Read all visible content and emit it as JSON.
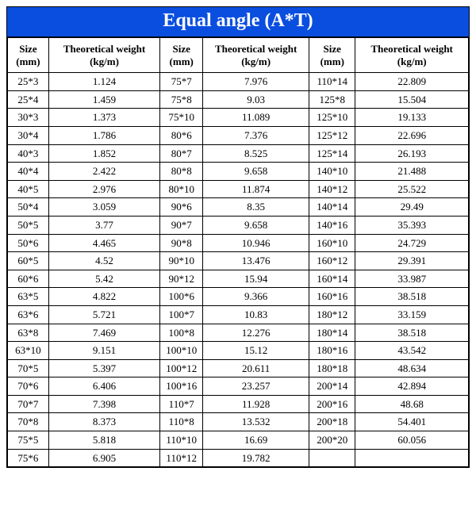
{
  "title": "Equal   angle (A*T)",
  "headers": {
    "size": "Size",
    "size_unit": "(mm)",
    "weight": "Theoretical weight",
    "weight_unit": "(kg/m)"
  },
  "colors": {
    "title_bg": "#0a4ee0",
    "title_fg": "#ffffff",
    "border": "#000000",
    "bg": "#ffffff"
  },
  "rows": [
    {
      "s1": "25*3",
      "w1": "1.124",
      "s2": "75*7",
      "w2": "7.976",
      "s3": "110*14",
      "w3": "22.809"
    },
    {
      "s1": "25*4",
      "w1": "1.459",
      "s2": "75*8",
      "w2": "9.03",
      "s3": "125*8",
      "w3": "15.504"
    },
    {
      "s1": "30*3",
      "w1": "1.373",
      "s2": "75*10",
      "w2": "11.089",
      "s3": "125*10",
      "w3": "19.133"
    },
    {
      "s1": "30*4",
      "w1": "1.786",
      "s2": "80*6",
      "w2": "7.376",
      "s3": "125*12",
      "w3": "22.696"
    },
    {
      "s1": "40*3",
      "w1": "1.852",
      "s2": "80*7",
      "w2": "8.525",
      "s3": "125*14",
      "w3": "26.193"
    },
    {
      "s1": "40*4",
      "w1": "2.422",
      "s2": "80*8",
      "w2": "9.658",
      "s3": "140*10",
      "w3": "21.488"
    },
    {
      "s1": "40*5",
      "w1": "2.976",
      "s2": "80*10",
      "w2": "11.874",
      "s3": "140*12",
      "w3": "25.522"
    },
    {
      "s1": "50*4",
      "w1": "3.059",
      "s2": "90*6",
      "w2": "8.35",
      "s3": "140*14",
      "w3": "29.49"
    },
    {
      "s1": "50*5",
      "w1": "3.77",
      "s2": "90*7",
      "w2": "9.658",
      "s3": "140*16",
      "w3": "35.393"
    },
    {
      "s1": "50*6",
      "w1": "4.465",
      "s2": "90*8",
      "w2": "10.946",
      "s3": "160*10",
      "w3": "24.729"
    },
    {
      "s1": "60*5",
      "w1": "4.52",
      "s2": "90*10",
      "w2": "13.476",
      "s3": "160*12",
      "w3": "29.391"
    },
    {
      "s1": "60*6",
      "w1": "5.42",
      "s2": "90*12",
      "w2": "15.94",
      "s3": "160*14",
      "w3": "33.987"
    },
    {
      "s1": "63*5",
      "w1": "4.822",
      "s2": "100*6",
      "w2": "9.366",
      "s3": "160*16",
      "w3": "38.518"
    },
    {
      "s1": "63*6",
      "w1": "5.721",
      "s2": "100*7",
      "w2": "10.83",
      "s3": "180*12",
      "w3": "33.159"
    },
    {
      "s1": "63*8",
      "w1": "7.469",
      "s2": "100*8",
      "w2": "12.276",
      "s3": "180*14",
      "w3": "38.518"
    },
    {
      "s1": "63*10",
      "w1": "9.151",
      "s2": "100*10",
      "w2": "15.12",
      "s3": "180*16",
      "w3": "43.542"
    },
    {
      "s1": "70*5",
      "w1": "5.397",
      "s2": "100*12",
      "w2": "20.611",
      "s3": "180*18",
      "w3": "48.634"
    },
    {
      "s1": "70*6",
      "w1": "6.406",
      "s2": "100*16",
      "w2": "23.257",
      "s3": "200*14",
      "w3": "42.894"
    },
    {
      "s1": "70*7",
      "w1": "7.398",
      "s2": "110*7",
      "w2": "11.928",
      "s3": "200*16",
      "w3": "48.68"
    },
    {
      "s1": "70*8",
      "w1": "8.373",
      "s2": "110*8",
      "w2": "13.532",
      "s3": "200*18",
      "w3": "54.401"
    },
    {
      "s1": "75*5",
      "w1": "5.818",
      "s2": "110*10",
      "w2": "16.69",
      "s3": "200*20",
      "w3": "60.056"
    },
    {
      "s1": "75*6",
      "w1": "6.905",
      "s2": "110*12",
      "w2": "19.782",
      "s3": "",
      "w3": ""
    }
  ]
}
